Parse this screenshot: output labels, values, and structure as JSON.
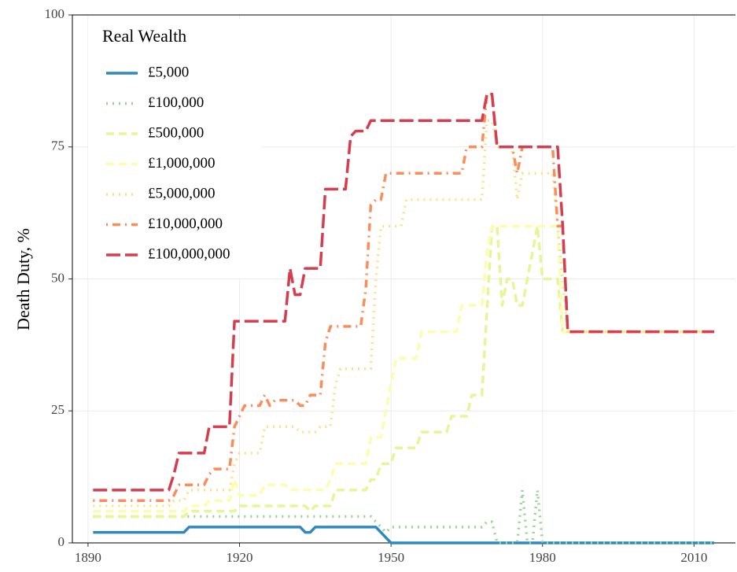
{
  "chart_data": {
    "type": "line",
    "y_label": "Death Duty, %",
    "legend_title": "Real Wealth",
    "legend": "top-left",
    "grid": true,
    "xlim": [
      1886.9,
      2018.2
    ],
    "xticks": [
      1890,
      1920,
      1950,
      1980,
      2010
    ],
    "ylim": [
      0,
      100
    ],
    "yticks": [
      0,
      25,
      50,
      75,
      100
    ],
    "series": [
      {
        "name": "£5,000",
        "color": "#3288bd",
        "linestyle": "solid",
        "x": [
          1891,
          1909,
          1910,
          1932,
          1933,
          1934,
          1935,
          1947,
          1949,
          1950,
          2014
        ],
        "values": [
          2,
          2,
          3,
          3,
          2,
          2,
          3,
          3,
          1,
          0,
          0
        ]
      },
      {
        "name": "£100,000",
        "color": "#99d594",
        "linestyle": "dotted",
        "x": [
          1891,
          1946,
          1947,
          1948,
          1949,
          1950,
          1968,
          1969,
          1970,
          1971,
          1975,
          1976,
          1977,
          1978,
          1979,
          1980,
          2014
        ],
        "values": [
          5,
          5,
          4,
          3,
          2,
          3,
          3,
          4,
          4,
          0,
          0,
          10,
          0,
          0,
          10,
          0,
          0
        ]
      },
      {
        "name": "£500,000",
        "color": "#e6f598",
        "linestyle": "dashed",
        "x": [
          1891,
          1909,
          1910,
          1919,
          1920,
          1933,
          1934,
          1935,
          1938,
          1939,
          1945,
          1946,
          1947,
          1948,
          1950,
          1951,
          1955,
          1956,
          1961,
          1962,
          1965,
          1966,
          1968,
          1970,
          1971,
          1972,
          1973,
          1974,
          1975,
          1976,
          1977,
          1978,
          1979,
          1980,
          1983,
          1984,
          2014
        ],
        "values": [
          5,
          5,
          6,
          6,
          7,
          7,
          6,
          7,
          7,
          10,
          10,
          12,
          12,
          15,
          15,
          18,
          18,
          21,
          21,
          24,
          24,
          28,
          28,
          60,
          60,
          45,
          50,
          50,
          45,
          45,
          50,
          55,
          60,
          50,
          50,
          40,
          40
        ]
      },
      {
        "name": "£1,000,000",
        "color": "#fdfdb0",
        "linestyle": "dashed",
        "x": [
          1891,
          1909,
          1910,
          1913,
          1914,
          1918,
          1919,
          1920,
          1924,
          1925,
          1929,
          1930,
          1937,
          1938,
          1939,
          1945,
          1946,
          1948,
          1949,
          1950,
          1951,
          1955,
          1956,
          1963,
          1964,
          1968,
          1969,
          1970,
          1983,
          1984,
          2014
        ],
        "values": [
          6,
          6,
          7,
          7,
          8,
          8,
          12,
          9,
          9,
          11,
          11,
          10,
          10,
          12,
          15,
          15,
          20,
          20,
          25,
          30,
          35,
          35,
          40,
          40,
          45,
          45,
          55,
          60,
          60,
          40,
          40
        ]
      },
      {
        "name": "£5,000,000",
        "color": "#fee08b",
        "linestyle": "dotted",
        "x": [
          1891,
          1906,
          1907,
          1909,
          1910,
          1918,
          1919,
          1920,
          1924,
          1925,
          1931,
          1932,
          1935,
          1936,
          1938,
          1939,
          1940,
          1946,
          1947,
          1948,
          1952,
          1953,
          1968,
          1969,
          1970,
          1971,
          1974,
          1975,
          1976,
          1982,
          1983,
          1985,
          2014
        ],
        "values": [
          7,
          7,
          8,
          8,
          10,
          10,
          15,
          17,
          17,
          22,
          22,
          21,
          21,
          22,
          22,
          30,
          33,
          33,
          50,
          60,
          60,
          65,
          65,
          80,
          80,
          75,
          75,
          65,
          70,
          70,
          60,
          40,
          40
        ]
      },
      {
        "name": "£10,000,000",
        "color": "#fc8d59",
        "linestyle": "dotdash",
        "x": [
          1891,
          1906,
          1907,
          1908,
          1913,
          1914,
          1915,
          1918,
          1919,
          1920,
          1921,
          1924,
          1925,
          1926,
          1927,
          1931,
          1932,
          1933,
          1934,
          1936,
          1937,
          1938,
          1944,
          1945,
          1946,
          1947,
          1948,
          1949,
          1964,
          1965,
          1968,
          1969,
          1970,
          1971,
          1974,
          1975,
          1976,
          1982,
          1983,
          1984,
          1985,
          2014
        ],
        "values": [
          8,
          8,
          9,
          11,
          11,
          13,
          14,
          14,
          22,
          24,
          26,
          26,
          28,
          26,
          27,
          27,
          26,
          26,
          28,
          28,
          38,
          41,
          41,
          48,
          64,
          65,
          65,
          70,
          70,
          75,
          75,
          85,
          85,
          75,
          75,
          70,
          75,
          75,
          60,
          60,
          40,
          40
        ]
      },
      {
        "name": "£100,000,000",
        "color": "#d53e4f",
        "linestyle": "longdash",
        "x": [
          1891,
          1906,
          1907,
          1908,
          1913,
          1914,
          1918,
          1919,
          1929,
          1930,
          1931,
          1932,
          1933,
          1936,
          1937,
          1941,
          1942,
          1943,
          1945,
          1946,
          1968,
          1969,
          1970,
          1971,
          1983,
          1984,
          1985,
          2014
        ],
        "values": [
          10,
          10,
          13,
          17,
          17,
          22,
          22,
          42,
          42,
          52,
          47,
          47,
          52,
          52,
          67,
          67,
          77,
          78,
          78,
          80,
          80,
          85,
          85,
          75,
          75,
          60,
          40,
          40
        ]
      }
    ]
  }
}
